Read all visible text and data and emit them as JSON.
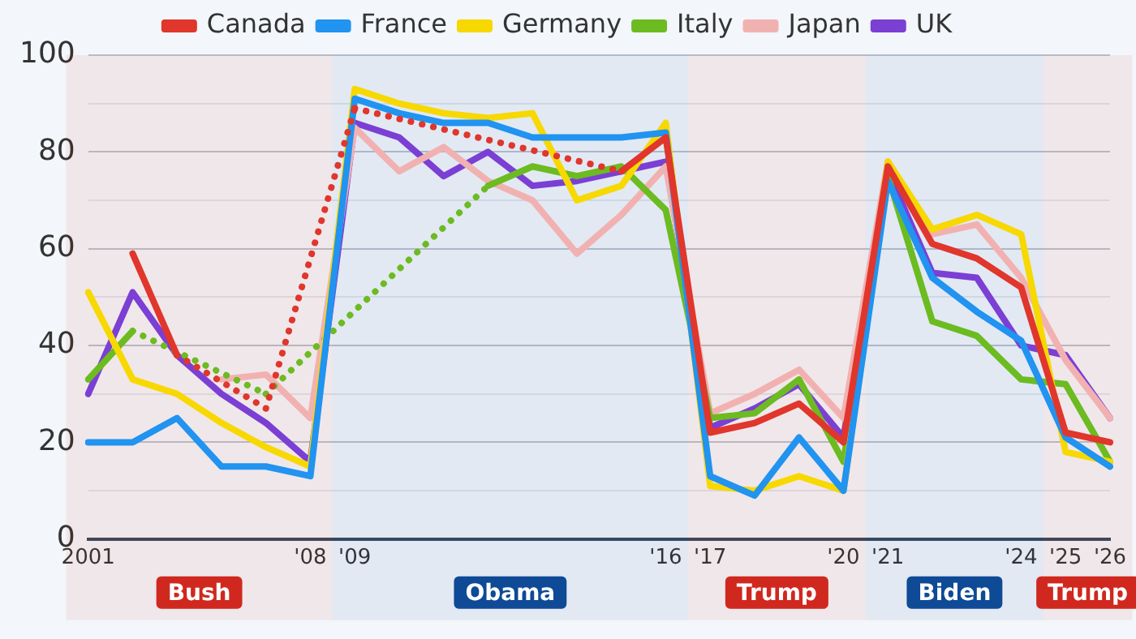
{
  "chart_data": {
    "type": "line",
    "categories": [
      "2001",
      null,
      null,
      null,
      null,
      "'08",
      "'09",
      null,
      null,
      null,
      null,
      null,
      null,
      "'16",
      "'17",
      null,
      null,
      "'20",
      "'21",
      null,
      null,
      "'24",
      "'25",
      "'26"
    ],
    "series": [
      {
        "name": "Canada",
        "color": "#e0362c",
        "values": [
          null,
          59,
          38,
          null,
          27,
          null,
          89,
          null,
          null,
          null,
          null,
          null,
          76,
          83,
          22,
          24,
          28,
          20,
          77,
          61,
          58,
          52,
          22,
          20
        ]
      },
      {
        "name": "France",
        "color": "#2193f0",
        "values": [
          20,
          20,
          25,
          15,
          15,
          13,
          91,
          88,
          86,
          86,
          83,
          83,
          83,
          84,
          13,
          9,
          21,
          10,
          74,
          54,
          47,
          41,
          21,
          15
        ]
      },
      {
        "name": "Germany",
        "color": "#f7d800",
        "values": [
          51,
          33,
          30,
          24,
          19,
          15,
          93,
          90,
          88,
          87,
          88,
          70,
          73,
          86,
          11,
          10,
          13,
          10,
          78,
          64,
          67,
          63,
          18,
          16
        ]
      },
      {
        "name": "Italy",
        "color": "#6cbb21",
        "values": [
          33,
          43,
          null,
          null,
          30,
          null,
          null,
          null,
          null,
          73,
          77,
          75,
          77,
          68,
          25,
          26,
          33,
          16,
          75,
          45,
          42,
          33,
          32,
          16
        ]
      },
      {
        "name": "Japan",
        "color": "#f2b1b1",
        "values": [
          null,
          null,
          null,
          33,
          34,
          25,
          85,
          76,
          81,
          74,
          70,
          59,
          67,
          77,
          26,
          30,
          35,
          25,
          78,
          63,
          65,
          54,
          37,
          25
        ]
      },
      {
        "name": "UK",
        "color": "#7b3fd4",
        "values": [
          30,
          51,
          38,
          30,
          24,
          16,
          86,
          83,
          75,
          80,
          73,
          74,
          76,
          78,
          23,
          27,
          32,
          21,
          76,
          55,
          54,
          40,
          38,
          25
        ]
      }
    ],
    "ylim": [
      0,
      100
    ],
    "yticks": [
      0,
      {
        "value": 10,
        "label": null
      },
      20,
      {
        "value": 30,
        "label": null
      },
      40,
      {
        "value": 50,
        "label": null
      },
      60,
      {
        "value": 70,
        "label": null
      },
      80,
      {
        "value": 90,
        "label": null
      },
      100
    ],
    "grid": "y",
    "legend": "top",
    "marker": "none",
    "line_style": "solid",
    "bands": [
      {
        "axis": "x",
        "from": "2001",
        "to": "'08",
        "label": "Bush",
        "color": "#d0281e"
      },
      {
        "axis": "x",
        "from": "'09",
        "to": "'16",
        "label": "Obama",
        "color": "#0e4a96"
      },
      {
        "axis": "x",
        "from": "'17",
        "to": "'20",
        "label": "Trump",
        "color": "#d0281e"
      },
      {
        "axis": "x",
        "from": "'21",
        "to": "'24",
        "label": "Biden",
        "color": "#0e4a96"
      },
      {
        "axis": "x",
        "from": "'25",
        "to": "'26",
        "label": "Trump",
        "color": "#d0281e"
      }
    ]
  }
}
